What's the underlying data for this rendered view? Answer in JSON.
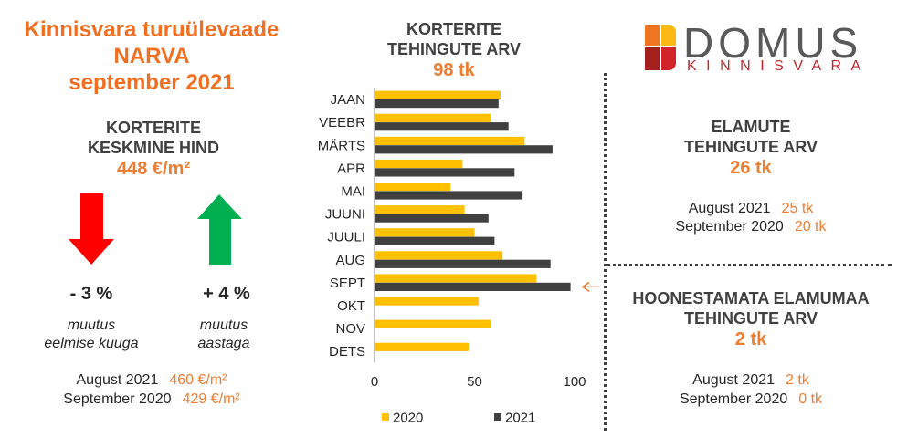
{
  "header": {
    "title_lines": [
      "Kinnisvara turuülevaade",
      "NARVA",
      "september 2021"
    ]
  },
  "colors": {
    "title_orange": "#F26F21",
    "value_orange": "#ED7D31",
    "heading_text": "#404040",
    "body_text": "#262626",
    "arrow_down": "#FF0000",
    "arrow_up": "#00B050",
    "divider": "#404040"
  },
  "price_panel": {
    "heading": [
      "KORTERITE",
      "KESKMINE HIND"
    ],
    "value": "448 €/m²",
    "changes": [
      {
        "icon": "arrow-down-icon",
        "value": "- 3 %",
        "caption": [
          "muutus",
          "eelmise kuuga"
        ]
      },
      {
        "icon": "arrow-up-icon",
        "value": "+ 4 %",
        "caption": [
          "muutus",
          "aastaga"
        ]
      }
    ],
    "comparisons": [
      {
        "label": "August 2021",
        "value": "460 €/m²"
      },
      {
        "label": "September 2020",
        "value": "429 €/m²"
      }
    ]
  },
  "apartment_deals": {
    "heading": [
      "KORTERITE",
      "TEHINGUTE ARV"
    ],
    "value": "98 tk"
  },
  "chart_data": {
    "type": "bar",
    "orientation": "horizontal",
    "categories": [
      "JAAN",
      "VEEBR",
      "MÄRTS",
      "APR",
      "MAI",
      "JUUNI",
      "JUULI",
      "AUG",
      "SEPT",
      "OKT",
      "NOV",
      "DETS"
    ],
    "series": [
      {
        "name": "2020",
        "color": "#FFC000",
        "values": [
          63,
          58,
          75,
          44,
          38,
          45,
          50,
          64,
          81,
          52,
          58,
          47
        ]
      },
      {
        "name": "2021",
        "color": "#404040",
        "values": [
          62,
          67,
          89,
          70,
          74,
          57,
          60,
          88,
          98,
          null,
          null,
          null
        ]
      }
    ],
    "xlim": [
      0,
      100
    ],
    "xticks": [
      0,
      50,
      100
    ],
    "grid": false,
    "legend": "bottom",
    "highlight": {
      "category_index": 8,
      "series_index": 1,
      "color": "#ED7D31",
      "icon": "arrow-left-icon"
    }
  },
  "logo": {
    "wordmark": "DOMUS",
    "tagline": "KINNISVARA",
    "mark_colors": [
      "#EE7623",
      "#FDB913",
      "#A3201F",
      "#D2232A"
    ]
  },
  "house_deals": {
    "heading": [
      "ELAMUTE",
      "TEHINGUTE ARV"
    ],
    "value": "26 tk",
    "comparisons": [
      {
        "label": "August 2021",
        "value": "25 tk"
      },
      {
        "label": "September 2020",
        "value": "20 tk"
      }
    ]
  },
  "land_deals": {
    "heading": [
      "HOONESTAMATA ELAMUMAA",
      "TEHINGUTE ARV"
    ],
    "value": "2 tk",
    "comparisons": [
      {
        "label": "August 2021",
        "value": "2 tk"
      },
      {
        "label": "September 2020",
        "value": "0 tk"
      }
    ]
  }
}
